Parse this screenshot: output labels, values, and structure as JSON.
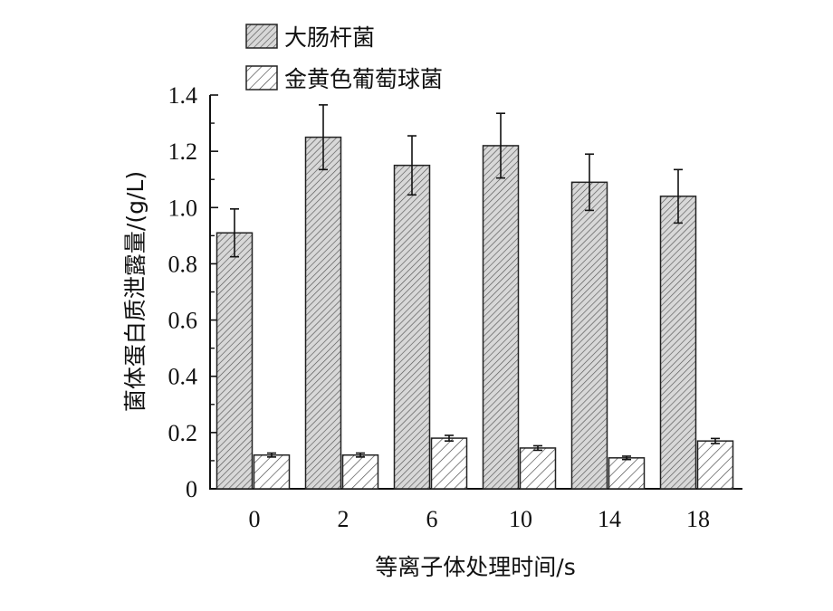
{
  "chart_data": {
    "type": "bar",
    "categories": [
      "0",
      "2",
      "6",
      "10",
      "14",
      "18"
    ],
    "xlabel": "等离子体处理时间/s",
    "ylabel": "菌体蛋白质泄露量/(g/L)",
    "ylim": [
      0,
      1.4
    ],
    "yticks": [
      "0",
      "0.2",
      "0.4",
      "0.6",
      "0.8",
      "1.0",
      "1.2",
      "1.4"
    ],
    "grid": false,
    "legend_position": "top-left",
    "series": [
      {
        "name": "大肠杆菌",
        "values": [
          0.91,
          1.25,
          1.15,
          1.22,
          1.09,
          1.04
        ],
        "errors": [
          0.085,
          0.115,
          0.105,
          0.115,
          0.1,
          0.095
        ],
        "hatch": "dense-diagonal",
        "color": "#cfcfcf"
      },
      {
        "name": "金黄色葡萄球菌",
        "values": [
          0.12,
          0.12,
          0.18,
          0.145,
          0.11,
          0.17
        ],
        "errors": [
          0.007,
          0.007,
          0.01,
          0.008,
          0.006,
          0.009
        ],
        "hatch": "sparse-diagonal",
        "color": "#ffffff"
      }
    ]
  }
}
